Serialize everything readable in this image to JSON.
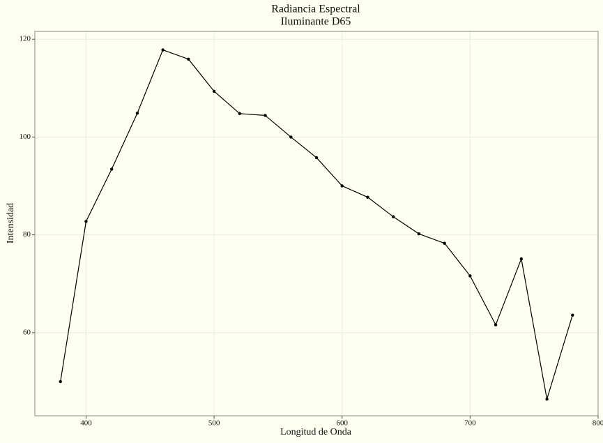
{
  "chart_data": {
    "type": "line",
    "title": "Radiancia Espectral",
    "subtitle": "Iluminante D65",
    "x_label": "Longitud de Onda",
    "y_label": "Intensidad",
    "x": [
      380,
      400,
      420,
      440,
      460,
      480,
      500,
      520,
      540,
      560,
      580,
      600,
      620,
      640,
      660,
      680,
      700,
      720,
      740,
      760,
      780
    ],
    "values": [
      50.0,
      82.75,
      93.43,
      104.86,
      117.81,
      115.92,
      109.35,
      104.79,
      104.41,
      100.0,
      95.79,
      90.01,
      87.7,
      83.7,
      80.21,
      78.28,
      71.61,
      61.6,
      75.09,
      46.42,
      63.59
    ],
    "color": "#000000",
    "xlim": [
      360,
      800
    ],
    "ylim": [
      43,
      121.6
    ],
    "xticks": [
      400,
      500,
      600,
      700,
      800
    ],
    "yticks": [
      60,
      80,
      100,
      120
    ],
    "grid": true
  }
}
